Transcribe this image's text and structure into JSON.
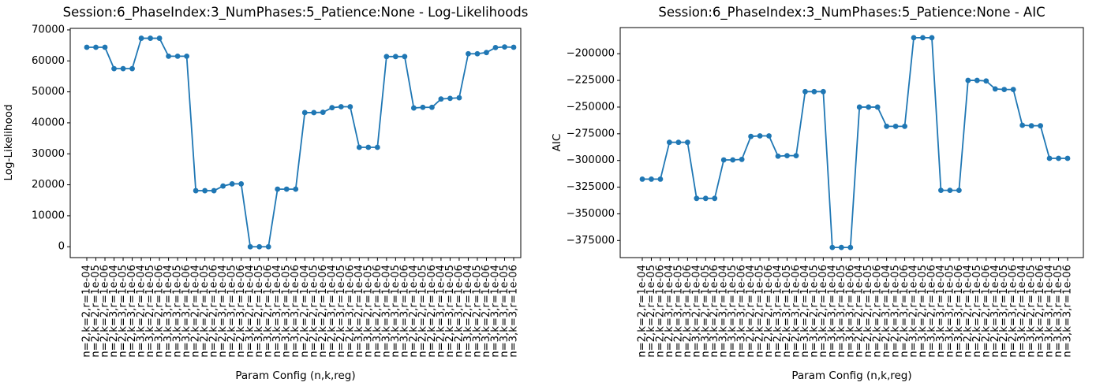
{
  "chart_data": [
    {
      "type": "line",
      "title": "Session:6_PhaseIndex:3_NumPhases:5_Patience:None - Log-Likelihoods",
      "xlabel": "Param Config (n,k,reg)",
      "ylabel": "Log-Likelihood",
      "ylim": [
        -3500,
        70500
      ],
      "yticks": [
        0,
        10000,
        20000,
        30000,
        40000,
        50000,
        60000,
        70000
      ],
      "ytick_labels": [
        "0",
        "10000",
        "20000",
        "30000",
        "40000",
        "50000",
        "60000",
        "70000"
      ],
      "grid": false,
      "legend": null,
      "marker": "circle",
      "line_color": "#1f77b4",
      "categories": [
        "n=2,k=2,r=1e-04",
        "n=2,k=2,r=1e-05",
        "n=2,k=2,r=1e-06",
        "n=2,k=3,r=1e-04",
        "n=2,k=3,r=1e-05",
        "n=2,k=3,r=1e-06",
        "n=3,k=2,r=1e-04",
        "n=3,k=2,r=1e-05",
        "n=3,k=2,r=1e-06",
        "n=3,k=3,r=1e-04",
        "n=3,k=3,r=1e-05",
        "n=3,k=3,r=1e-06",
        "n=2,k=2,r=1e-04",
        "n=2,k=2,r=1e-05",
        "n=2,k=2,r=1e-06",
        "n=2,k=3,r=1e-04",
        "n=2,k=3,r=1e-05",
        "n=2,k=3,r=1e-06",
        "n=3,k=2,r=1e-04",
        "n=3,k=2,r=1e-05",
        "n=3,k=2,r=1e-06",
        "n=3,k=3,r=1e-04",
        "n=3,k=3,r=1e-05",
        "n=3,k=3,r=1e-06",
        "n=2,k=2,r=1e-04",
        "n=2,k=2,r=1e-05",
        "n=2,k=2,r=1e-06",
        "n=2,k=3,r=1e-04",
        "n=2,k=3,r=1e-05",
        "n=2,k=3,r=1e-06",
        "n=3,k=2,r=1e-04",
        "n=3,k=2,r=1e-05",
        "n=3,k=2,r=1e-06",
        "n=3,k=3,r=1e-04",
        "n=3,k=3,r=1e-05",
        "n=3,k=3,r=1e-06",
        "n=2,k=2,r=1e-04",
        "n=2,k=2,r=1e-05",
        "n=2,k=2,r=1e-06",
        "n=2,k=3,r=1e-04",
        "n=2,k=3,r=1e-05",
        "n=2,k=3,r=1e-06",
        "n=3,k=2,r=1e-04",
        "n=3,k=2,r=1e-05",
        "n=3,k=2,r=1e-06",
        "n=3,k=3,r=1e-04",
        "n=3,k=3,r=1e-05",
        "n=3,k=3,r=1e-06"
      ],
      "values": [
        64400,
        64400,
        64400,
        57500,
        57500,
        57500,
        67300,
        67300,
        67300,
        61500,
        61500,
        61500,
        18100,
        18100,
        18100,
        19600,
        20300,
        20300,
        0,
        0,
        0,
        18600,
        18600,
        18600,
        43300,
        43300,
        43400,
        44900,
        45200,
        45200,
        32100,
        32100,
        32100,
        61400,
        61400,
        61400,
        44800,
        45000,
        45000,
        47700,
        47900,
        48100,
        62300,
        62300,
        62700,
        64300,
        64500,
        64400
      ]
    },
    {
      "type": "line",
      "title": "Session:6_PhaseIndex:3_NumPhases:5_Patience:None - AIC",
      "xlabel": "Param Config (n,k,reg)",
      "ylabel": "AIC",
      "ylim": [
        -391000,
        -175500
      ],
      "yticks": [
        -200000,
        -225000,
        -250000,
        -275000,
        -300000,
        -325000,
        -350000,
        -375000
      ],
      "ytick_labels": [
        "−200000",
        "−225000",
        "−250000",
        "−275000",
        "−300000",
        "−325000",
        "−350000",
        "−375000"
      ],
      "grid": false,
      "legend": null,
      "marker": "circle",
      "line_color": "#1f77b4",
      "categories": [
        "n=2,k=2,r=1e-04",
        "n=2,k=2,r=1e-05",
        "n=2,k=2,r=1e-06",
        "n=2,k=3,r=1e-04",
        "n=2,k=3,r=1e-05",
        "n=2,k=3,r=1e-06",
        "n=3,k=2,r=1e-04",
        "n=3,k=2,r=1e-05",
        "n=3,k=2,r=1e-06",
        "n=3,k=3,r=1e-04",
        "n=3,k=3,r=1e-05",
        "n=3,k=3,r=1e-06",
        "n=2,k=2,r=1e-04",
        "n=2,k=2,r=1e-05",
        "n=2,k=2,r=1e-06",
        "n=2,k=3,r=1e-04",
        "n=2,k=3,r=1e-05",
        "n=2,k=3,r=1e-06",
        "n=3,k=2,r=1e-04",
        "n=3,k=2,r=1e-05",
        "n=3,k=2,r=1e-06",
        "n=3,k=3,r=1e-04",
        "n=3,k=3,r=1e-05",
        "n=3,k=3,r=1e-06",
        "n=2,k=2,r=1e-04",
        "n=2,k=2,r=1e-05",
        "n=2,k=2,r=1e-06",
        "n=2,k=3,r=1e-04",
        "n=2,k=3,r=1e-05",
        "n=2,k=3,r=1e-06",
        "n=3,k=2,r=1e-04",
        "n=3,k=2,r=1e-05",
        "n=3,k=2,r=1e-06",
        "n=3,k=3,r=1e-04",
        "n=3,k=3,r=1e-05",
        "n=3,k=3,r=1e-06",
        "n=2,k=2,r=1e-04",
        "n=2,k=2,r=1e-05",
        "n=2,k=2,r=1e-06",
        "n=2,k=3,r=1e-04",
        "n=2,k=3,r=1e-05",
        "n=2,k=3,r=1e-06",
        "n=3,k=2,r=1e-04",
        "n=3,k=2,r=1e-05",
        "n=3,k=2,r=1e-06",
        "n=3,k=3,r=1e-04",
        "n=3,k=3,r=1e-05",
        "n=3,k=3,r=1e-06"
      ],
      "values": [
        -317500,
        -317500,
        -317500,
        -283000,
        -283000,
        -283000,
        -335500,
        -335500,
        -335500,
        -299500,
        -299500,
        -299000,
        -277500,
        -277000,
        -277000,
        -296000,
        -295500,
        -295500,
        -235500,
        -235500,
        -235500,
        -381500,
        -381500,
        -381500,
        -250000,
        -250000,
        -250000,
        -268000,
        -268000,
        -268000,
        -185000,
        -185000,
        -185000,
        -328000,
        -328000,
        -328000,
        -225000,
        -225000,
        -225500,
        -233000,
        -233500,
        -233500,
        -267000,
        -267500,
        -267500,
        -298000,
        -298000,
        -298000
      ]
    }
  ]
}
